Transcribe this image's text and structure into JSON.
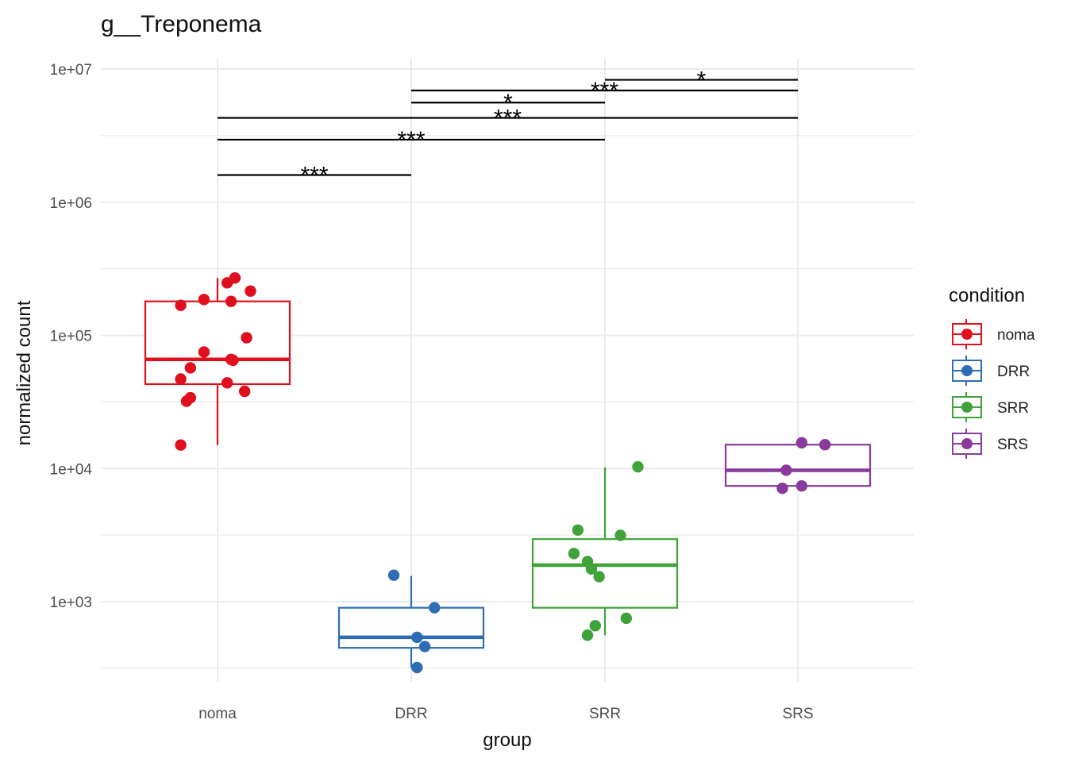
{
  "chart_data": {
    "type": "box",
    "title": "g__Treponema",
    "xlabel": "group",
    "ylabel": "normalized count",
    "y_scale": "log10",
    "ylim": [
      250,
      12000000
    ],
    "y_ticks": [
      {
        "value": 1000,
        "label": "1e+03"
      },
      {
        "value": 10000,
        "label": "1e+04"
      },
      {
        "value": 100000,
        "label": "1e+05"
      },
      {
        "value": 1000000,
        "label": "1e+06"
      },
      {
        "value": 10000000,
        "label": "1e+07"
      }
    ],
    "categories": [
      "noma",
      "DRR",
      "SRR",
      "SRS"
    ],
    "grid": true,
    "legend": {
      "title": "condition",
      "position": "right",
      "entries": [
        "noma",
        "DRR",
        "SRR",
        "SRS"
      ]
    },
    "colors": {
      "noma": "#E0101E",
      "DRR": "#2E6DB4",
      "SRR": "#3FA33A",
      "SRS": "#8A3A9C"
    },
    "series": [
      {
        "name": "noma",
        "box": {
          "q1": 43000,
          "median": 66000,
          "q3": 180000,
          "whisker_low": 15000,
          "whisker_high": 270000
        },
        "points": [
          {
            "dx": -0.19,
            "y": 15000
          },
          {
            "dx": -0.16,
            "y": 32000
          },
          {
            "dx": -0.14,
            "y": 34000
          },
          {
            "dx": -0.19,
            "y": 47000
          },
          {
            "dx": -0.14,
            "y": 57000
          },
          {
            "dx": 0.14,
            "y": 38000
          },
          {
            "dx": 0.05,
            "y": 44000
          },
          {
            "dx": 0.07,
            "y": 66000
          },
          {
            "dx": 0.08,
            "y": 65000
          },
          {
            "dx": -0.07,
            "y": 75000
          },
          {
            "dx": 0.15,
            "y": 96000
          },
          {
            "dx": -0.19,
            "y": 168000
          },
          {
            "dx": -0.07,
            "y": 186000
          },
          {
            "dx": 0.07,
            "y": 180000
          },
          {
            "dx": 0.17,
            "y": 215000
          },
          {
            "dx": 0.05,
            "y": 248000
          },
          {
            "dx": 0.09,
            "y": 270000
          }
        ]
      },
      {
        "name": "DRR",
        "box": {
          "q1": 450,
          "median": 540,
          "q3": 900,
          "whisker_low": 320,
          "whisker_high": 1560
        },
        "points": [
          {
            "dx": -0.09,
            "y": 1580
          },
          {
            "dx": 0.12,
            "y": 900
          },
          {
            "dx": 0.03,
            "y": 540
          },
          {
            "dx": 0.07,
            "y": 460
          },
          {
            "dx": 0.03,
            "y": 320
          }
        ]
      },
      {
        "name": "SRR",
        "box": {
          "q1": 900,
          "median": 1880,
          "q3": 2950,
          "whisker_low": 560,
          "whisker_high": 10200
        },
        "points": [
          {
            "dx": 0.17,
            "y": 10300
          },
          {
            "dx": -0.14,
            "y": 3450
          },
          {
            "dx": 0.08,
            "y": 3150
          },
          {
            "dx": -0.16,
            "y": 2300
          },
          {
            "dx": -0.09,
            "y": 2000
          },
          {
            "dx": -0.07,
            "y": 1760
          },
          {
            "dx": -0.03,
            "y": 1540
          },
          {
            "dx": 0.11,
            "y": 750
          },
          {
            "dx": -0.05,
            "y": 660
          },
          {
            "dx": -0.09,
            "y": 560
          }
        ]
      },
      {
        "name": "SRS",
        "box": {
          "q1": 7400,
          "median": 9700,
          "q3": 15100,
          "whisker_low": 7200,
          "whisker_high": 15600
        },
        "points": [
          {
            "dx": 0.02,
            "y": 15600
          },
          {
            "dx": 0.14,
            "y": 15100
          },
          {
            "dx": -0.06,
            "y": 9700
          },
          {
            "dx": 0.02,
            "y": 7400
          },
          {
            "dx": -0.08,
            "y": 7100
          }
        ]
      }
    ],
    "annotations": [
      {
        "from": "noma",
        "to": "DRR",
        "y": 1600000,
        "label": "***"
      },
      {
        "from": "noma",
        "to": "SRR",
        "y": 2950000,
        "label": "***"
      },
      {
        "from": "noma",
        "to": "SRS",
        "y": 4300000,
        "label": "***"
      },
      {
        "from": "DRR",
        "to": "SRR",
        "y": 5600000,
        "label": "*"
      },
      {
        "from": "DRR",
        "to": "SRS",
        "y": 6900000,
        "label": "***"
      },
      {
        "from": "SRR",
        "to": "SRS",
        "y": 8300000,
        "label": "*"
      }
    ]
  }
}
